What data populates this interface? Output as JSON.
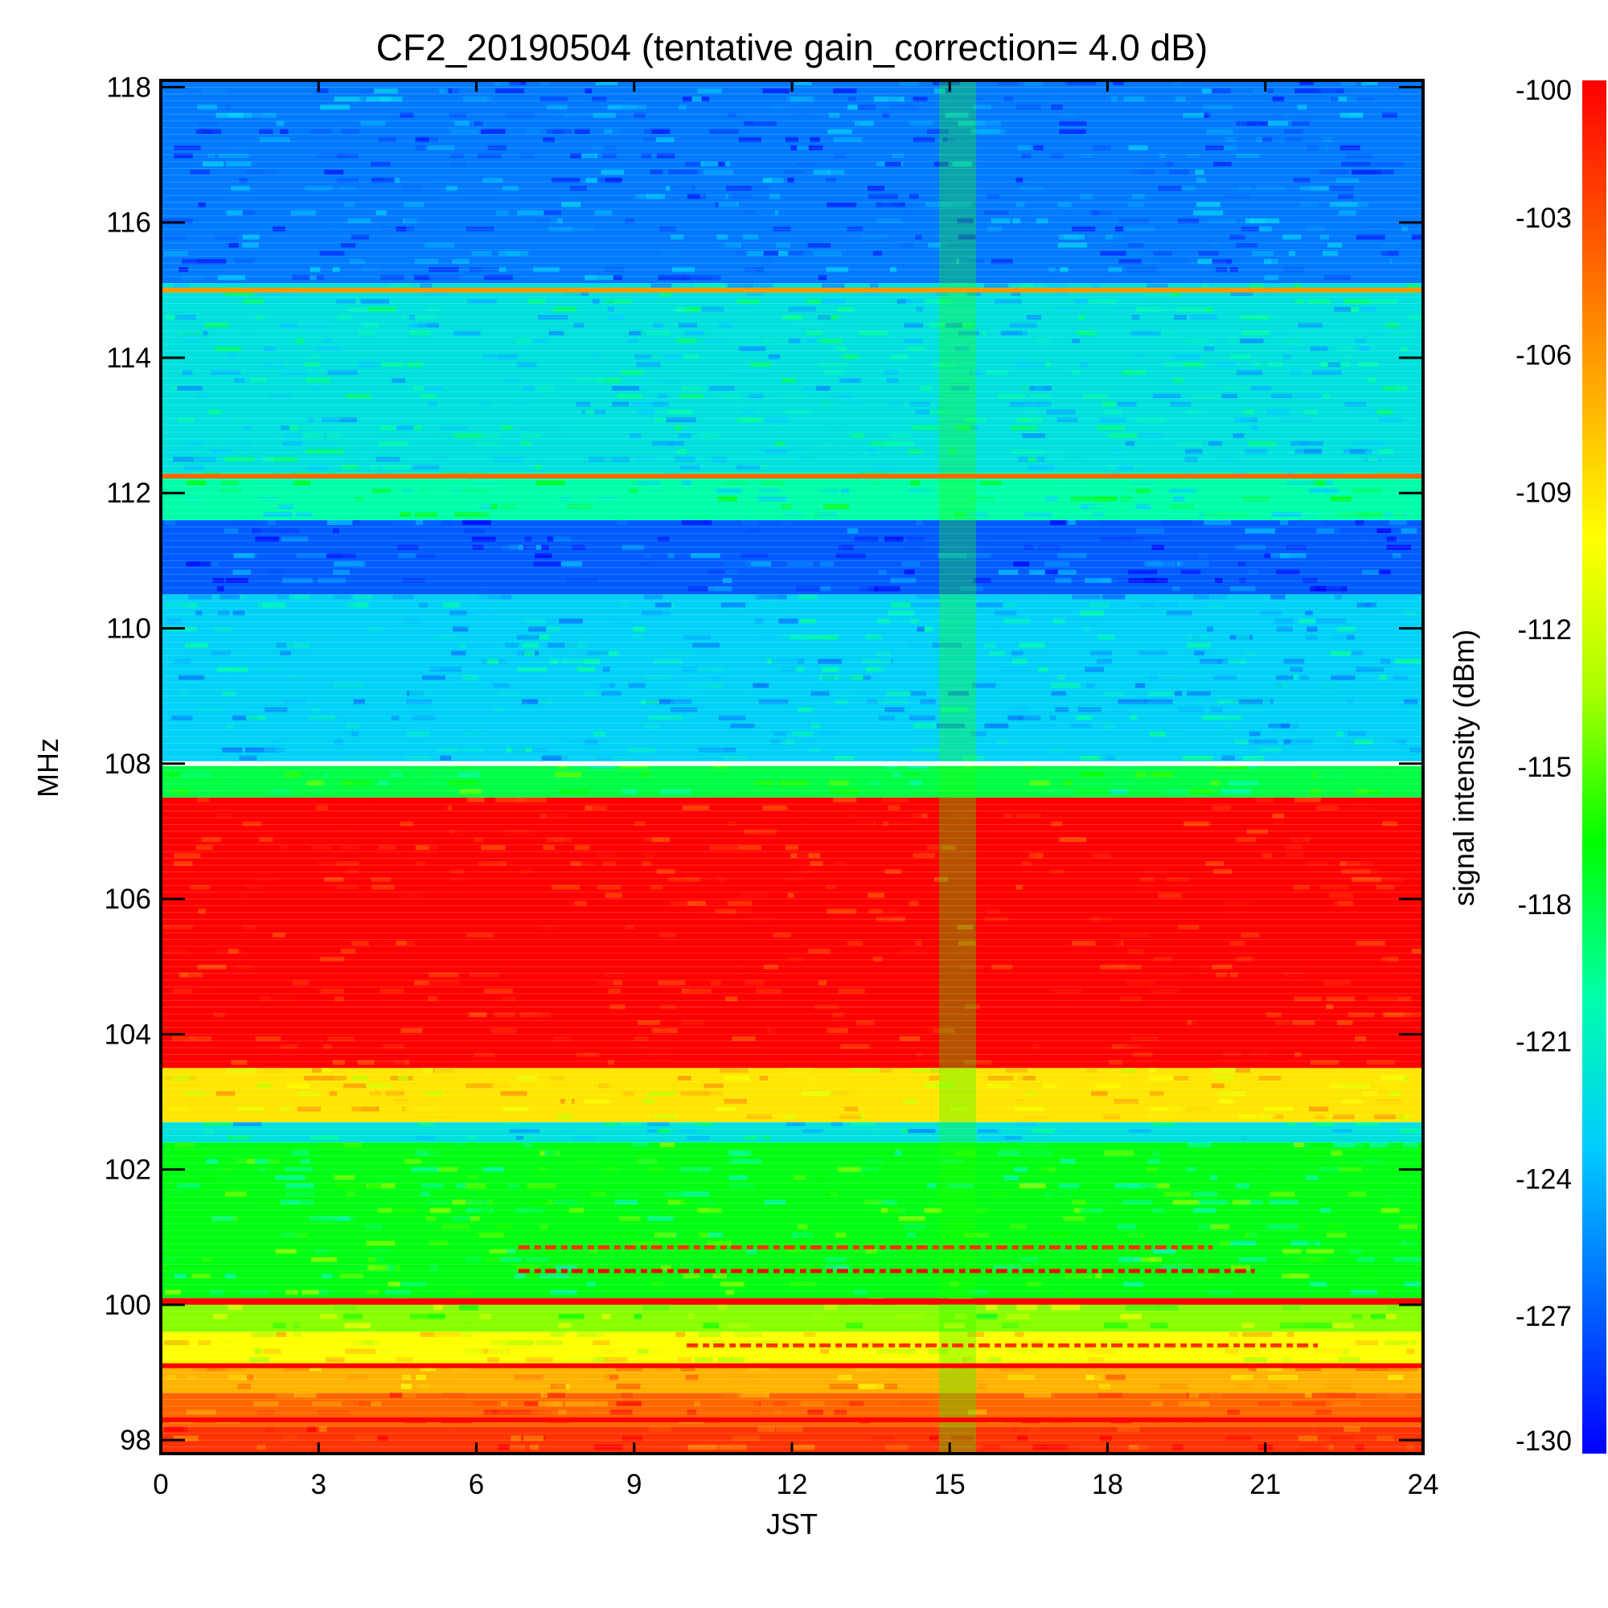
{
  "chart_data": {
    "type": "heatmap",
    "title": "CF2_20190504 (tentative gain_correction=  4.0 dB)",
    "xlabel": "JST",
    "ylabel": "MHz",
    "colorbar_label": "signal intensity (dBm)",
    "xlim": [
      0,
      24
    ],
    "ylim": [
      97.8,
      118.1
    ],
    "x_ticks": [
      "0",
      "3",
      "6",
      "9",
      "12",
      "15",
      "18",
      "21",
      "24"
    ],
    "x_tick_values": [
      0,
      3,
      6,
      9,
      12,
      15,
      18,
      21,
      24
    ],
    "y_ticks": [
      "98",
      "100",
      "102",
      "104",
      "106",
      "108",
      "110",
      "112",
      "114",
      "116",
      "118"
    ],
    "y_tick_values": [
      98,
      100,
      102,
      104,
      106,
      108,
      110,
      112,
      114,
      116,
      118
    ],
    "colorbar_ticks": [
      "-100",
      "-103",
      "-106",
      "-109",
      "-112",
      "-115",
      "-118",
      "-121",
      "-124",
      "-127",
      "-130"
    ],
    "colorbar_tick_values": [
      -100,
      -103,
      -106,
      -109,
      -112,
      -115,
      -118,
      -121,
      -124,
      -127,
      -130
    ],
    "colorbar_range": [
      -130,
      -100
    ],
    "colormap": [
      "#0000ff",
      "#0066ff",
      "#00ccff",
      "#00ffaa",
      "#00ff00",
      "#aaff00",
      "#ffff00",
      "#ffaa00",
      "#ff5500",
      "#ff0000"
    ],
    "bands": [
      {
        "f_low": 97.8,
        "f_high": 98.2,
        "level_dbm": -102
      },
      {
        "f_low": 98.2,
        "f_high": 98.7,
        "level_dbm": -104
      },
      {
        "f_low": 98.7,
        "f_high": 99.1,
        "level_dbm": -107
      },
      {
        "f_low": 99.1,
        "f_high": 99.6,
        "level_dbm": -110
      },
      {
        "f_low": 99.6,
        "f_high": 100.0,
        "level_dbm": -114
      },
      {
        "f_low": 100.0,
        "f_high": 100.1,
        "level_dbm": -100
      },
      {
        "f_low": 100.1,
        "f_high": 102.4,
        "level_dbm": -117
      },
      {
        "f_low": 102.4,
        "f_high": 102.7,
        "level_dbm": -122
      },
      {
        "f_low": 102.7,
        "f_high": 103.5,
        "level_dbm": -109
      },
      {
        "f_low": 103.5,
        "f_high": 107.5,
        "level_dbm": -100
      },
      {
        "f_low": 107.5,
        "f_high": 108.0,
        "level_dbm": -118
      },
      {
        "f_low": 108.0,
        "f_high": 110.5,
        "level_dbm": -123
      },
      {
        "f_low": 110.5,
        "f_high": 111.6,
        "level_dbm": -127
      },
      {
        "f_low": 111.6,
        "f_high": 112.3,
        "level_dbm": -120
      },
      {
        "f_low": 112.3,
        "f_high": 115.1,
        "level_dbm": -122
      },
      {
        "f_low": 115.1,
        "f_high": 118.1,
        "level_dbm": -126
      }
    ],
    "persistent_lines": [
      {
        "freq": 98.3,
        "level_dbm": -100
      },
      {
        "freq": 99.1,
        "level_dbm": -100
      },
      {
        "freq": 100.05,
        "level_dbm": -100
      },
      {
        "freq": 112.25,
        "level_dbm": -104
      },
      {
        "freq": 115.0,
        "level_dbm": -106
      }
    ],
    "intermittent_lines": [
      {
        "freq": 100.5,
        "x_start": 6.8,
        "x_end": 20.8,
        "level_dbm": -100
      },
      {
        "freq": 100.85,
        "x_start": 6.8,
        "x_end": 20.0,
        "level_dbm": -102
      },
      {
        "freq": 99.4,
        "x_start": 10.0,
        "x_end": 22.0,
        "level_dbm": -102
      }
    ],
    "vertical_features": [
      {
        "x_start": 14.8,
        "x_end": 15.5,
        "f_low": 97.8,
        "f_high": 118.1,
        "level_dbm": -116
      }
    ],
    "gap_lines": [
      {
        "freq": 108.0,
        "color": "#ffffff"
      }
    ]
  }
}
